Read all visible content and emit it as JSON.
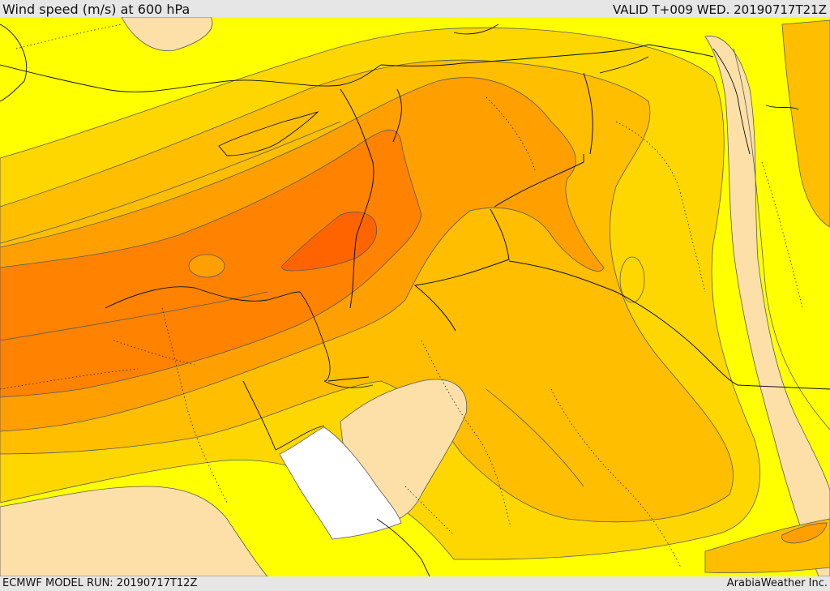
{
  "header": {
    "title": "Wind speed (m/s) at 600 hPa",
    "valid": "VALID T+009 WED. 20190717T21Z"
  },
  "footer": {
    "model_run": "ECMWF MODEL RUN: 20190717T12Z",
    "credit": "ArabiaWeather Inc."
  },
  "map": {
    "colors": {
      "light": "#fde0a8",
      "yellow": "#ffff00",
      "gold": "#ffd700",
      "amber": "#ffbe00",
      "orange": "#ffa000",
      "dark_orange": "#ff8200",
      "deep_orange": "#ff6400",
      "no_data": "#ffffff",
      "contour": "#5a5a5a",
      "border": "#111111"
    }
  }
}
